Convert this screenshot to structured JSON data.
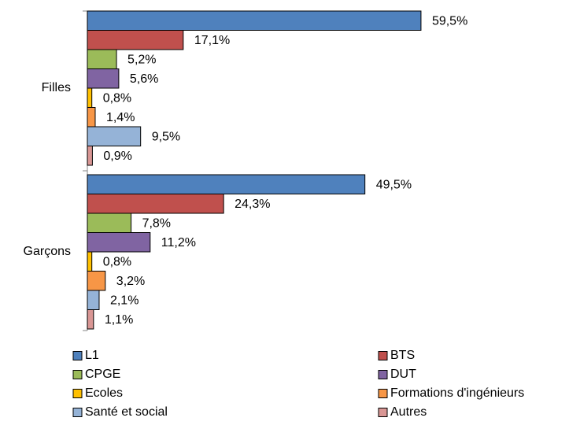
{
  "chart_data": {
    "type": "bar",
    "orientation": "horizontal",
    "categories": [
      "Filles",
      "Garçons"
    ],
    "series": [
      {
        "name": "L1",
        "color": "#4f81bd",
        "values": [
          59.5,
          49.5
        ],
        "value_labels": [
          "59,5%",
          "49,5%"
        ]
      },
      {
        "name": "BTS",
        "color": "#c0504d",
        "values": [
          17.1,
          24.3
        ],
        "value_labels": [
          "17,1%",
          "24,3%"
        ]
      },
      {
        "name": "CPGE",
        "color": "#9bbb59",
        "values": [
          5.2,
          7.8
        ],
        "value_labels": [
          "5,2%",
          "7,8%"
        ]
      },
      {
        "name": "DUT",
        "color": "#8064a2",
        "values": [
          5.6,
          11.2
        ],
        "value_labels": [
          "5,6%",
          "11,2%"
        ]
      },
      {
        "name": "Ecoles",
        "color": "#ffc000",
        "values": [
          0.8,
          0.8
        ],
        "value_labels": [
          "0,8%",
          "0,8%"
        ]
      },
      {
        "name": "Formations d'ingénieurs",
        "color": "#f79646",
        "values": [
          1.4,
          3.2
        ],
        "value_labels": [
          "1,4%",
          "3,2%"
        ]
      },
      {
        "name": "Santé et social",
        "color": "#95b3d7",
        "values": [
          9.5,
          2.1
        ],
        "value_labels": [
          "9,5%",
          "2,1%"
        ]
      },
      {
        "name": "Autres",
        "color": "#d99694",
        "values": [
          0.9,
          1.1
        ],
        "value_labels": [
          "0,9%",
          "1,1%"
        ]
      }
    ],
    "legend": "bottom"
  }
}
